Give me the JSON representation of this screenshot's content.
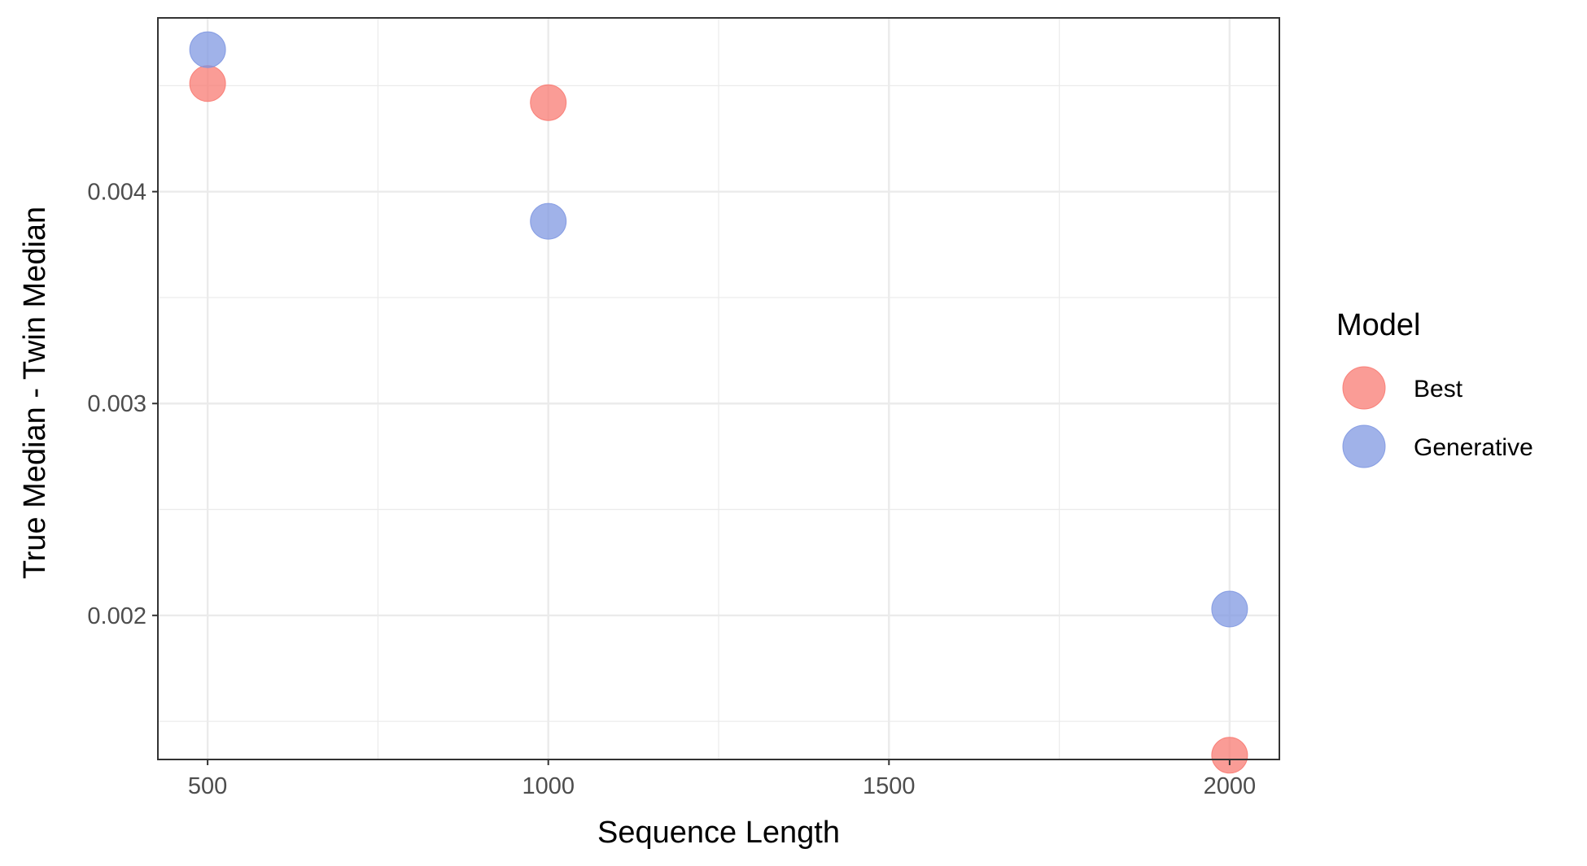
{
  "chart_data": {
    "type": "scatter",
    "title": "",
    "xlabel": "Sequence Length",
    "ylabel": "True Median - Twin Median",
    "xlim": [
      427,
      2073
    ],
    "ylim": [
      0.00132,
      0.00482
    ],
    "x_ticks": [
      500,
      1000,
      1500,
      2000
    ],
    "x_tick_labels": [
      "500",
      "1000",
      "1500",
      "2000"
    ],
    "y_ticks": [
      0.002,
      0.003,
      0.004
    ],
    "y_tick_labels": [
      "0.002",
      "0.003",
      "0.004"
    ],
    "grid": true,
    "legend": {
      "title": "Model",
      "position": "right"
    },
    "series": [
      {
        "name": "Best",
        "color": "#F8766D",
        "points": [
          {
            "x": 500,
            "y": 0.00451
          },
          {
            "x": 1000,
            "y": 0.00442
          },
          {
            "x": 2000,
            "y": 0.00134
          }
        ]
      },
      {
        "name": "Generative",
        "color": "#7B94E0",
        "points": [
          {
            "x": 500,
            "y": 0.00467
          },
          {
            "x": 1000,
            "y": 0.00386
          },
          {
            "x": 2000,
            "y": 0.00203
          }
        ]
      }
    ]
  }
}
